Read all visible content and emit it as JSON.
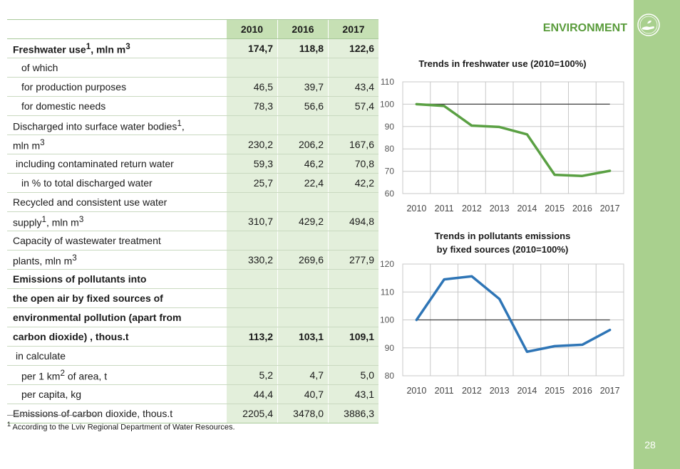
{
  "section_title": "ENVIRONMENT",
  "page_number": "28",
  "table": {
    "headers": [
      "2010",
      "2016",
      "2017"
    ],
    "rows": [
      {
        "label": "Freshwater use",
        "sup": "1",
        "label_tail": ", mln m",
        "sup2": "3",
        "values": [
          "174,7",
          "118,8",
          "122,6"
        ],
        "bold": true,
        "indent": 0
      },
      {
        "label": "of which",
        "values": [
          "",
          "",
          ""
        ],
        "indent": 1
      },
      {
        "label": "for production purposes",
        "values": [
          "46,5",
          "39,7",
          "43,4"
        ],
        "indent": 2
      },
      {
        "label": "for domestic needs",
        "values": [
          "78,3",
          "56,6",
          "57,4"
        ],
        "indent": 2
      },
      {
        "label": "Discharged into surface water bodies",
        "sup": "1",
        "label_tail": ",",
        "values": [
          "",
          "",
          ""
        ],
        "indent": 0
      },
      {
        "label": "mln m",
        "sup": "3",
        "values": [
          "230,2",
          "206,2",
          "167,6"
        ],
        "indent": 0
      },
      {
        "label": "including  contaminated return  water",
        "values": [
          "59,3",
          "46,2",
          "70,8"
        ],
        "indent": 3
      },
      {
        "label": "in % to total discharged water",
        "values": [
          "25,7",
          "22,4",
          "42,2"
        ],
        "indent": 2
      },
      {
        "label": "Recycled  and consistent use water",
        "values": [
          "",
          "",
          ""
        ],
        "indent": 0
      },
      {
        "label": "supply",
        "sup": "1",
        "label_tail": ",  mln m",
        "sup2": "3",
        "values": [
          "310,7",
          "429,2",
          "494,8"
        ],
        "indent": 0
      },
      {
        "label": "Capacity of wastewater treatment",
        "values": [
          "",
          "",
          ""
        ],
        "indent": 0
      },
      {
        "label": "plants, mln m",
        "sup": "3",
        "values": [
          "330,2",
          "269,6",
          "277,9"
        ],
        "indent": 0
      },
      {
        "label": "Emissions of pollutants into",
        "values": [
          "",
          "",
          ""
        ],
        "bold": true,
        "indent": 0
      },
      {
        "label": "the open air by fixed sources of",
        "values": [
          "",
          "",
          ""
        ],
        "bold": true,
        "indent": 0
      },
      {
        "label": "environmental pollution (apart from",
        "values": [
          "",
          "",
          ""
        ],
        "bold": true,
        "indent": 0
      },
      {
        "label": "carbon dioxide) , thous.t",
        "values": [
          "113,2",
          "103,1",
          "109,1"
        ],
        "bold": true,
        "indent": 0
      },
      {
        "label": "in calculate",
        "values": [
          "",
          "",
          ""
        ],
        "indent": 3
      },
      {
        "label": "per 1 km",
        "sup": "2",
        "label_tail": " of area, t",
        "values": [
          "5,2",
          "4,7",
          "5,0"
        ],
        "indent": 2
      },
      {
        "label": "per capita, kg",
        "values": [
          "44,4",
          "40,7",
          "43,1"
        ],
        "indent": 2
      },
      {
        "label": "Emissions of carbon dioxide, thous.t",
        "values": [
          "2205,4",
          "3478,0",
          "3886,3"
        ],
        "indent": 0
      }
    ]
  },
  "footnote": {
    "sup": "1",
    "text": " According to the Lviv Regional Department of Water Resources."
  },
  "chart_data": [
    {
      "type": "line",
      "title": "Trends in freshwater use (2010=100%)",
      "x": [
        "2010",
        "2011",
        "2012",
        "2013",
        "2014",
        "2015",
        "2016",
        "2017"
      ],
      "series": [
        {
          "values": [
            100,
            99.2,
            90.4,
            89.8,
            86.5,
            68.4,
            67.9,
            70.2
          ],
          "color": "#5aa043"
        }
      ],
      "reference": 100,
      "ylim": [
        60,
        110
      ],
      "yticks": [
        60,
        70,
        80,
        90,
        100,
        110
      ],
      "grid": true
    },
    {
      "type": "line",
      "title": "Trends in pollutants emissions by fixed sources (2010=100%)",
      "title_lines": [
        "Trends in pollutants emissions",
        "by fixed sources (2010=100%)"
      ],
      "x": [
        "2010",
        "2011",
        "2012",
        "2013",
        "2014",
        "2015",
        "2016",
        "2017"
      ],
      "series": [
        {
          "values": [
            100,
            114.5,
            115.6,
            107.5,
            88.6,
            90.6,
            91.1,
            96.4
          ],
          "color": "#2e75b6"
        }
      ],
      "reference": 100,
      "ylim": [
        80,
        120
      ],
      "yticks": [
        80,
        90,
        100,
        110,
        120
      ],
      "grid": true
    }
  ]
}
